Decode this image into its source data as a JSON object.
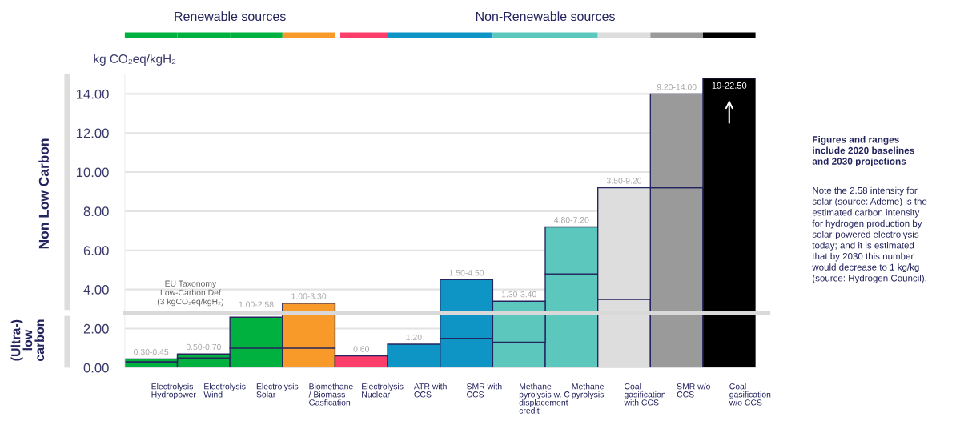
{
  "chart_data": {
    "type": "bar",
    "stacked": true,
    "ylabel": "kg CO₂eq/kgH₂",
    "categories": [
      "Electrolysis-\nHydropower",
      "Electrolysis-\nWind",
      "Electrolysis-\nSolar",
      "Biomethane\n/ Biomass\nGasfication",
      "Electrolysis-\nNuclear",
      "ATR with\nCCS",
      "SMR with\nCCS",
      "Methane\npyrolysis w. C\ndisplacement\ncredit",
      "Methane\npyrolysis",
      "Coal\ngasification\nwith CCS",
      "SMR w/o\nCCS",
      "Coal\ngasification\nw/o CCS"
    ],
    "series": [
      {
        "colors": [
          "#00b140",
          "#00b140",
          "#00b140",
          "#f79a2a",
          "#fb3e6a",
          "#0f94c6",
          "#0f94c6",
          "#5cc7bc",
          "#5cc7bc",
          "#dddddd",
          "#9a9a9a",
          "#000000"
        ],
        "values": [
          0.3,
          0.5,
          1.0,
          1.0,
          0.6,
          1.2,
          1.5,
          1.3,
          4.8,
          3.5,
          9.2,
          14.8
        ]
      },
      {
        "colors": [
          "#00b140",
          "#00b140",
          "#00b140",
          "#f79a2a",
          "#fb3e6a",
          "#0f94c6",
          "#0f94c6",
          "#5cc7bc",
          "#5cc7bc",
          "#dddddd",
          "#9a9a9a",
          "#000000"
        ],
        "values": [
          0.15,
          0.2,
          1.58,
          2.3,
          null,
          null,
          3.0,
          2.1,
          2.4,
          5.7,
          4.8,
          null
        ],
        "value_labels": [
          "0.30-0.45",
          "0.50-0.70",
          "1.00-2.58",
          "1.00-3.30",
          "0.60",
          "1.20",
          "1.50-4.50",
          "1.30-3.40",
          "4.80-7.20",
          "3.50-9.20",
          "9.20-14.00",
          null
        ]
      }
    ],
    "ylim": [
      0,
      15
    ],
    "yticks": [
      {
        "value": 0,
        "label": "0.00"
      },
      {
        "value": 2,
        "label": "2.00"
      },
      {
        "value": 4,
        "label": "4.00"
      },
      {
        "value": 6,
        "label": "6.00"
      },
      {
        "value": 8,
        "label": "8.00"
      },
      {
        "value": 10,
        "label": "10.00"
      },
      {
        "value": 12,
        "label": "12.00"
      },
      {
        "value": 14,
        "label": "14.00"
      }
    ],
    "grid": "y",
    "legend": false,
    "ref_lines": [
      {
        "axis": "y",
        "value": 2.8,
        "label": "EU Taxonomy\nLow-Carbon Def\n(3 kgCO₂eq/kgH₂)",
        "color": "#d9d9d9"
      }
    ],
    "annotations": [
      "Renewable sources",
      "Non-Renewable sources",
      "Non Low Carbon",
      "(Ultra-)\nlow\ncarbon",
      "Figures and ranges\ninclude 2020 baselines\nand 2030 projections",
      "Note the 2.58 intensity for\nsolar (source: Ademe) is the\nestimated carbon intensity\nfor hydrogen production by\nsolar-powered electrolysis\ntoday; and it is estimated\nthat by 2030 this number\nwould decrease to 1 kg/kg\n(source: Hydrogen Council).",
      {
        "text": "19-22.50",
        "x": "Coal\ngasification\nw/o CCS",
        "y": 14.8
      }
    ]
  }
}
